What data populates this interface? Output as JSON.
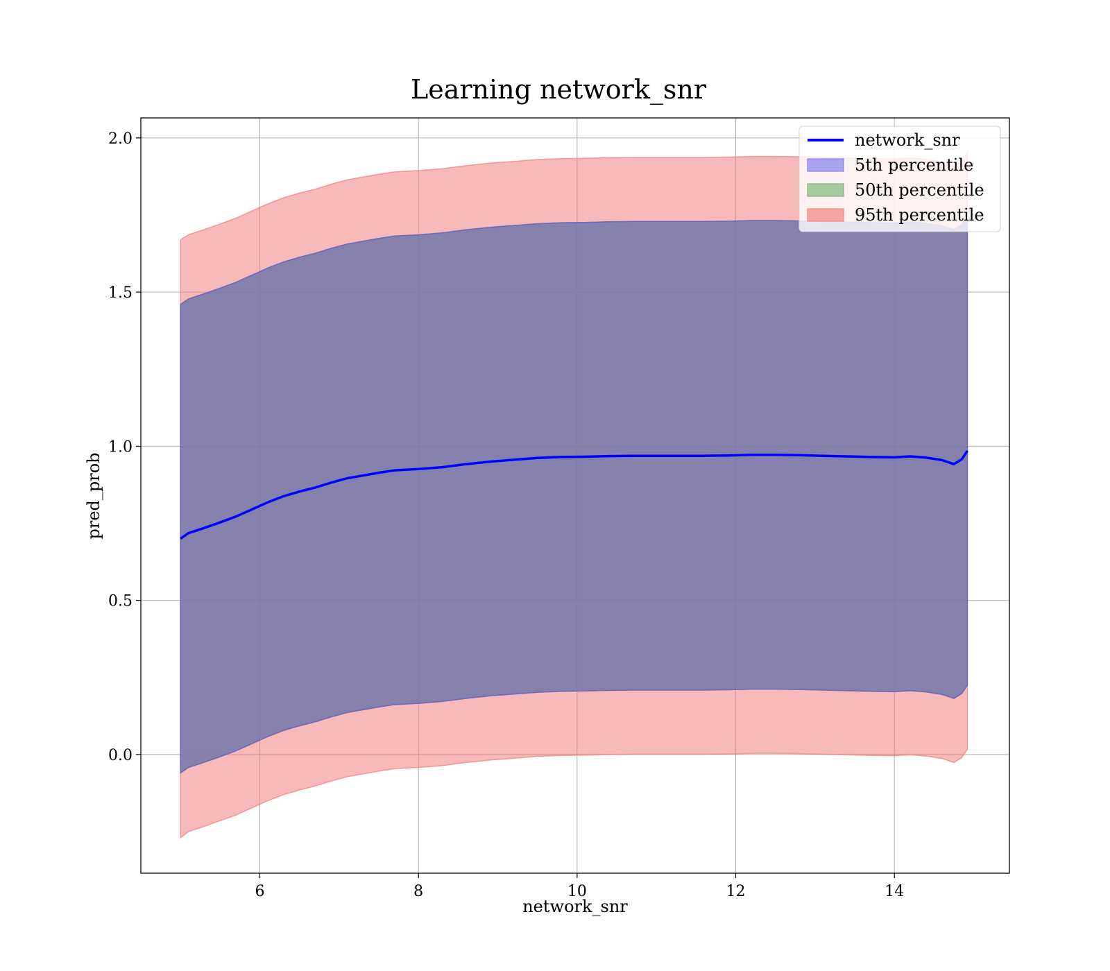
{
  "chart_data": {
    "type": "line",
    "title": "Learning network_snr",
    "xlabel": "network_snr",
    "ylabel": "pred_prob",
    "xlim": [
      4.5,
      15.45
    ],
    "ylim": [
      -0.385,
      2.065
    ],
    "xticks": [
      6,
      8,
      10,
      12,
      14
    ],
    "yticks": [
      0.0,
      0.5,
      1.0,
      1.5,
      2.0
    ],
    "xtick_labels": [
      "6",
      "8",
      "10",
      "12",
      "14"
    ],
    "ytick_labels": [
      "0.0",
      "0.5",
      "1.0",
      "1.5",
      "2.0"
    ],
    "grid": true,
    "legend_position": "top-right",
    "colors": {
      "line": "#0000ff",
      "p5": "#6a5acd",
      "p50": "#6aaa5a",
      "p95": "#f08080"
    },
    "legend": [
      {
        "label": "network_snr",
        "kind": "line",
        "color": "#0000ff"
      },
      {
        "label": "5th percentile",
        "kind": "patch",
        "color": "#aaa4f0",
        "edge": "#8a82e8"
      },
      {
        "label": "50th percentile",
        "kind": "patch",
        "color": "#a8c8a0",
        "edge": "#88b080"
      },
      {
        "label": "95th percentile",
        "kind": "patch",
        "color": "#f5a5a0",
        "edge": "#ee8a84"
      }
    ],
    "x": [
      5.0,
      5.1,
      5.3,
      5.5,
      5.7,
      5.9,
      6.1,
      6.3,
      6.5,
      6.7,
      6.9,
      7.1,
      7.3,
      7.5,
      7.7,
      8.0,
      8.3,
      8.6,
      8.9,
      9.2,
      9.5,
      9.8,
      10.1,
      10.4,
      10.7,
      11.0,
      11.3,
      11.6,
      11.9,
      12.2,
      12.5,
      12.8,
      13.1,
      13.4,
      13.7,
      14.0,
      14.2,
      14.4,
      14.6,
      14.75,
      14.85,
      14.92
    ],
    "series": [
      {
        "name": "network_snr",
        "values": [
          0.7,
          0.718,
          0.735,
          0.753,
          0.772,
          0.795,
          0.818,
          0.838,
          0.853,
          0.866,
          0.882,
          0.896,
          0.905,
          0.914,
          0.922,
          0.926,
          0.932,
          0.942,
          0.95,
          0.956,
          0.962,
          0.965,
          0.966,
          0.968,
          0.969,
          0.969,
          0.969,
          0.969,
          0.97,
          0.972,
          0.972,
          0.971,
          0.969,
          0.967,
          0.965,
          0.964,
          0.967,
          0.963,
          0.955,
          0.942,
          0.958,
          0.985
        ]
      }
    ],
    "bands": [
      {
        "name": "95th percentile",
        "lower": [
          -0.27,
          -0.25,
          -0.233,
          -0.215,
          -0.196,
          -0.173,
          -0.15,
          -0.13,
          -0.115,
          -0.102,
          -0.086,
          -0.072,
          -0.063,
          -0.054,
          -0.046,
          -0.042,
          -0.036,
          -0.026,
          -0.018,
          -0.012,
          -0.006,
          -0.003,
          -0.002,
          0.0,
          0.001,
          0.001,
          0.001,
          0.001,
          0.002,
          0.004,
          0.004,
          0.003,
          0.001,
          -0.001,
          -0.003,
          -0.004,
          -0.001,
          -0.005,
          -0.013,
          -0.026,
          -0.01,
          0.017
        ],
        "upper": [
          1.67,
          1.686,
          1.703,
          1.721,
          1.74,
          1.763,
          1.786,
          1.806,
          1.821,
          1.834,
          1.85,
          1.864,
          1.873,
          1.882,
          1.89,
          1.894,
          1.9,
          1.91,
          1.918,
          1.924,
          1.93,
          1.933,
          1.934,
          1.936,
          1.937,
          1.937,
          1.937,
          1.937,
          1.938,
          1.94,
          1.94,
          1.939,
          1.937,
          1.935,
          1.933,
          1.932,
          1.935,
          1.931,
          1.923,
          1.91,
          1.926,
          1.953
        ]
      },
      {
        "name": "50th percentile",
        "lower": [
          -0.06,
          -0.042,
          -0.025,
          -0.007,
          0.012,
          0.035,
          0.058,
          0.078,
          0.093,
          0.106,
          0.122,
          0.136,
          0.145,
          0.154,
          0.162,
          0.166,
          0.172,
          0.182,
          0.19,
          0.196,
          0.202,
          0.205,
          0.206,
          0.208,
          0.209,
          0.209,
          0.209,
          0.209,
          0.21,
          0.212,
          0.212,
          0.211,
          0.209,
          0.207,
          0.205,
          0.204,
          0.207,
          0.203,
          0.195,
          0.182,
          0.198,
          0.225
        ],
        "upper": [
          1.46,
          1.478,
          1.495,
          1.513,
          1.532,
          1.555,
          1.578,
          1.598,
          1.613,
          1.626,
          1.642,
          1.656,
          1.665,
          1.674,
          1.682,
          1.686,
          1.692,
          1.702,
          1.71,
          1.716,
          1.722,
          1.725,
          1.726,
          1.728,
          1.729,
          1.729,
          1.729,
          1.729,
          1.73,
          1.732,
          1.732,
          1.731,
          1.729,
          1.727,
          1.725,
          1.724,
          1.727,
          1.723,
          1.715,
          1.702,
          1.718,
          1.745
        ]
      },
      {
        "name": "5th percentile",
        "lower": [
          -0.06,
          -0.042,
          -0.025,
          -0.007,
          0.012,
          0.035,
          0.058,
          0.078,
          0.093,
          0.106,
          0.122,
          0.136,
          0.145,
          0.154,
          0.162,
          0.166,
          0.172,
          0.182,
          0.19,
          0.196,
          0.202,
          0.205,
          0.206,
          0.208,
          0.209,
          0.209,
          0.209,
          0.209,
          0.21,
          0.212,
          0.212,
          0.211,
          0.209,
          0.207,
          0.205,
          0.204,
          0.207,
          0.203,
          0.195,
          0.182,
          0.198,
          0.225
        ],
        "upper": [
          1.46,
          1.478,
          1.495,
          1.513,
          1.532,
          1.555,
          1.578,
          1.598,
          1.613,
          1.626,
          1.642,
          1.656,
          1.665,
          1.674,
          1.682,
          1.686,
          1.692,
          1.702,
          1.71,
          1.716,
          1.722,
          1.725,
          1.726,
          1.728,
          1.729,
          1.729,
          1.729,
          1.729,
          1.73,
          1.732,
          1.732,
          1.731,
          1.729,
          1.727,
          1.725,
          1.724,
          1.727,
          1.723,
          1.715,
          1.702,
          1.718,
          1.745
        ]
      }
    ]
  }
}
